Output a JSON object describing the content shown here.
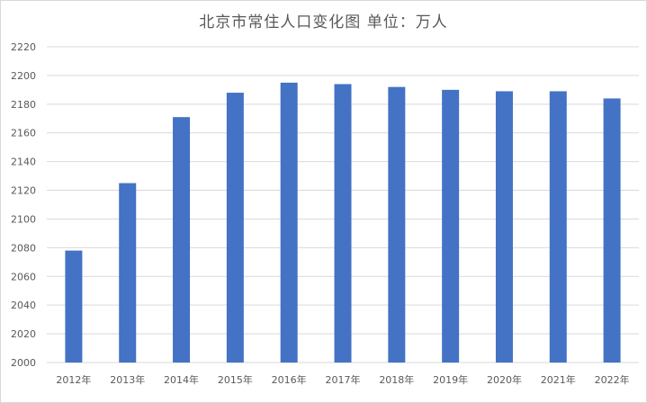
{
  "chart_data": {
    "type": "bar",
    "title": "北京市常住人口变化图 单位：万人",
    "categories": [
      "2012年",
      "2013年",
      "2014年",
      "2015年",
      "2016年",
      "2017年",
      "2018年",
      "2019年",
      "2020年",
      "2021年",
      "2022年"
    ],
    "values": [
      2078,
      2125,
      2171,
      2188,
      2195,
      2194,
      2192,
      2190,
      2189,
      2189,
      2184
    ],
    "ylim": [
      2000,
      2220
    ],
    "yticks": [
      2000,
      2020,
      2040,
      2060,
      2080,
      2100,
      2120,
      2140,
      2160,
      2180,
      2200,
      2220
    ],
    "bar_color": "#4472c4",
    "grid": true,
    "legend": "none"
  }
}
